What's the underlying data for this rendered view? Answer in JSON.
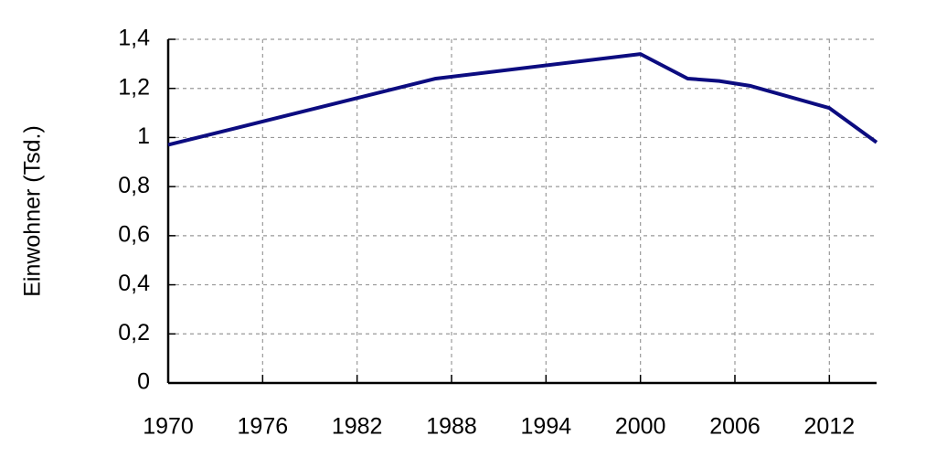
{
  "chart_data": {
    "type": "line",
    "y_label": "Einwohner (Tsd.)",
    "x": [
      1970,
      1987,
      2000,
      2003,
      2005,
      2007,
      2012,
      2015
    ],
    "series": [
      {
        "color": "#0c0c80",
        "values": [
          0.97,
          1.24,
          1.34,
          1.24,
          1.23,
          1.21,
          1.12,
          0.98
        ]
      }
    ],
    "xlim": [
      1970,
      2015
    ],
    "xticks": [
      1970,
      1976,
      1982,
      1988,
      1994,
      2000,
      2006,
      2012
    ],
    "ylim": [
      0,
      1.4
    ],
    "yticks": [
      0,
      {
        "value": 0.2,
        "label": "0,2"
      },
      {
        "value": 0.4,
        "label": "0,4"
      },
      {
        "value": 0.6,
        "label": "0,6"
      },
      {
        "value": 0.8,
        "label": "0,8"
      },
      1,
      {
        "value": 1.2,
        "label": "1,2"
      },
      {
        "value": 1.4,
        "label": "1,4"
      }
    ],
    "grid": true
  }
}
